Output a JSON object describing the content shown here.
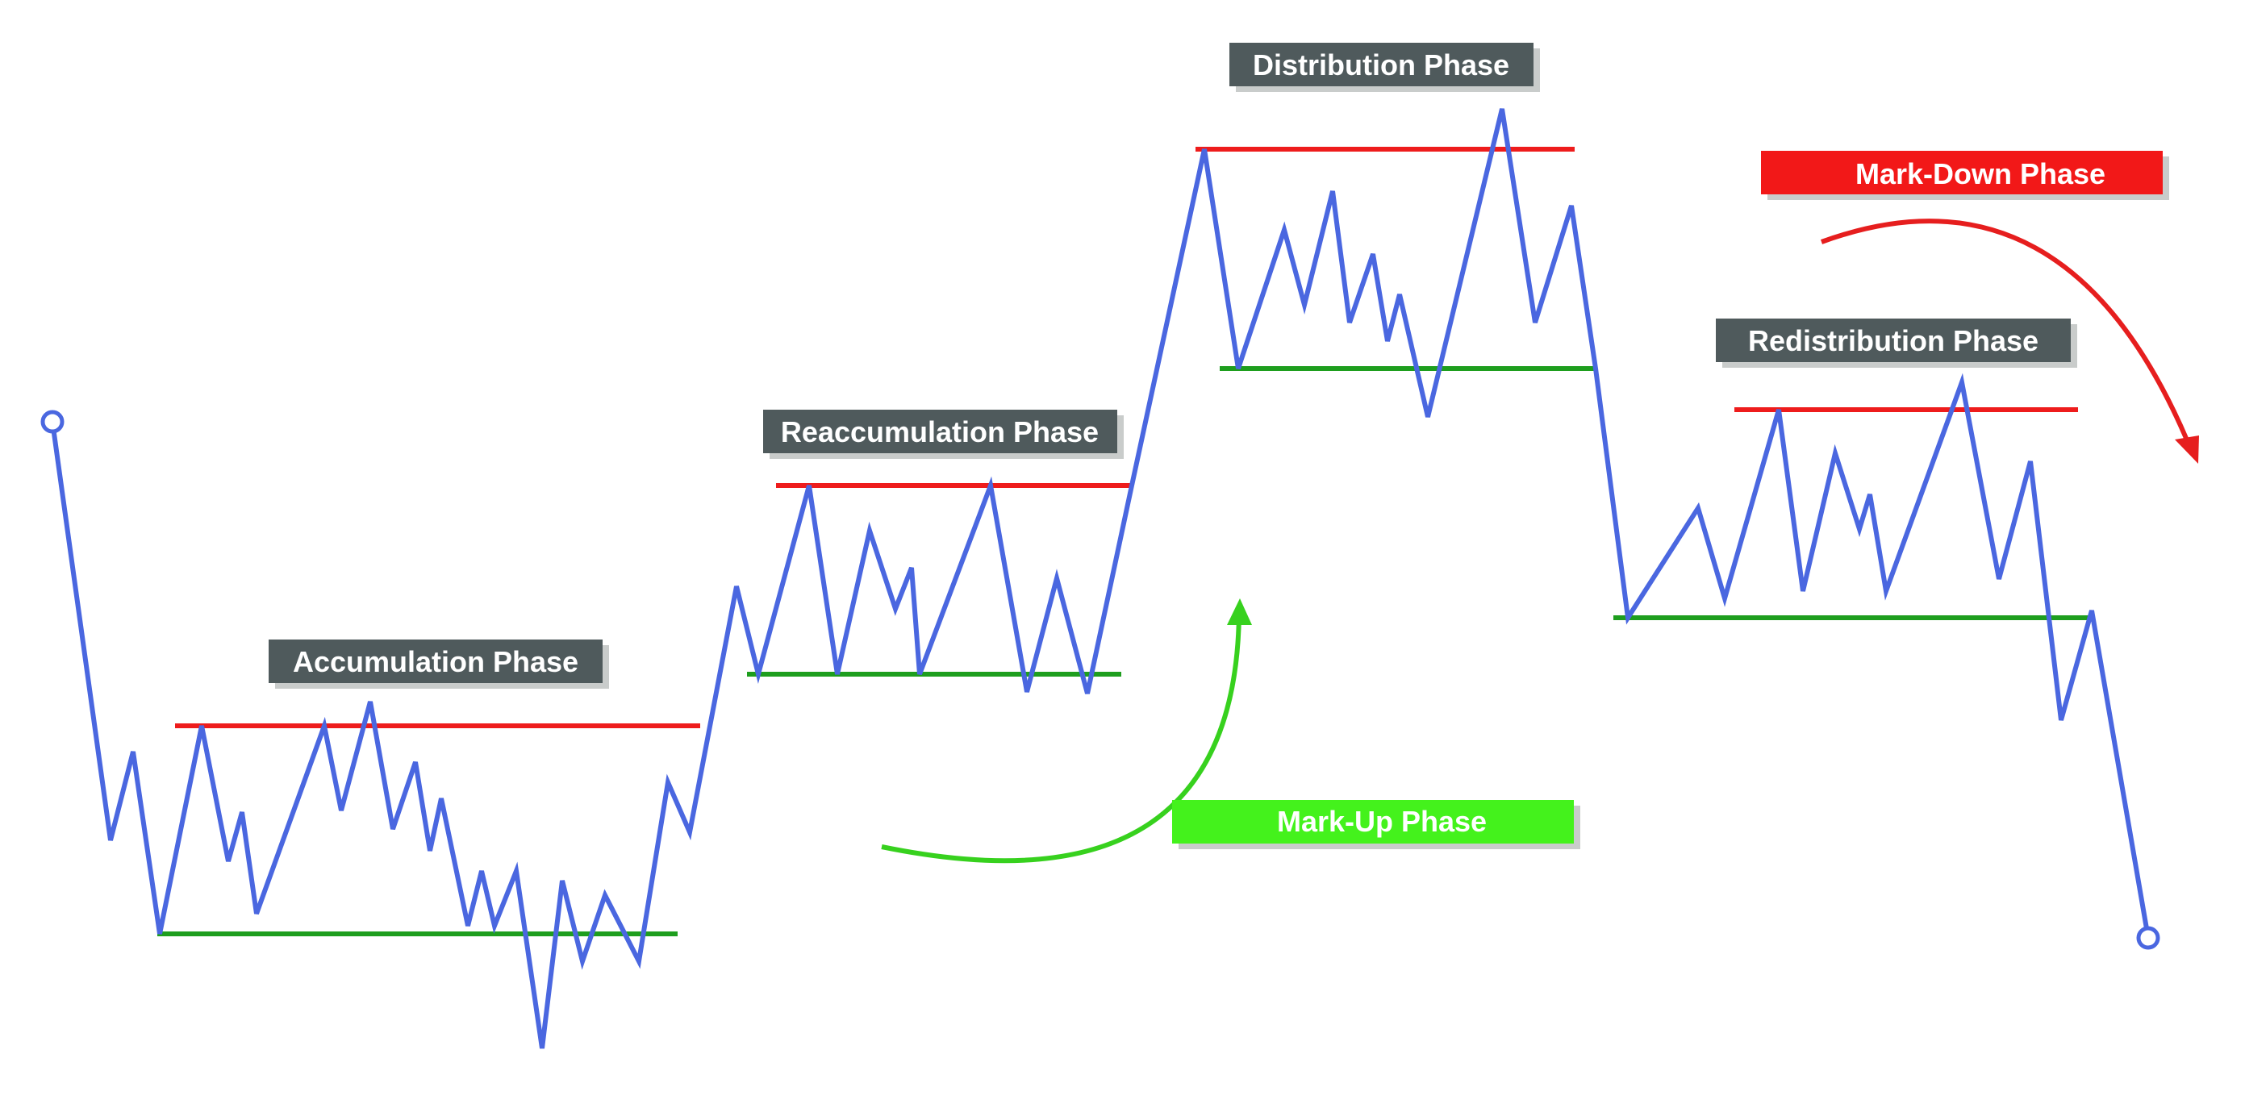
{
  "labels": {
    "accumulation": "Accumulation Phase",
    "reaccumulation": "Reaccumulation Phase",
    "distribution": "Distribution Phase",
    "redistribution": "Redistribution Phase",
    "markup": "Mark-Up Phase",
    "markdown": "Mark-Down Phase"
  },
  "colors": {
    "price_line": "#4a67e0",
    "resistance": "#ee1c1c",
    "support": "#1e9e1e",
    "label_bg": "#4f5a5c",
    "label_shadow": "#c9cccb",
    "label_text": "#ffffff",
    "markup_bg": "#44f21c",
    "markup_arrow": "#37d11e",
    "markdown_bg": "#f21818",
    "markdown_arrow": "#e61e1e"
  }
}
